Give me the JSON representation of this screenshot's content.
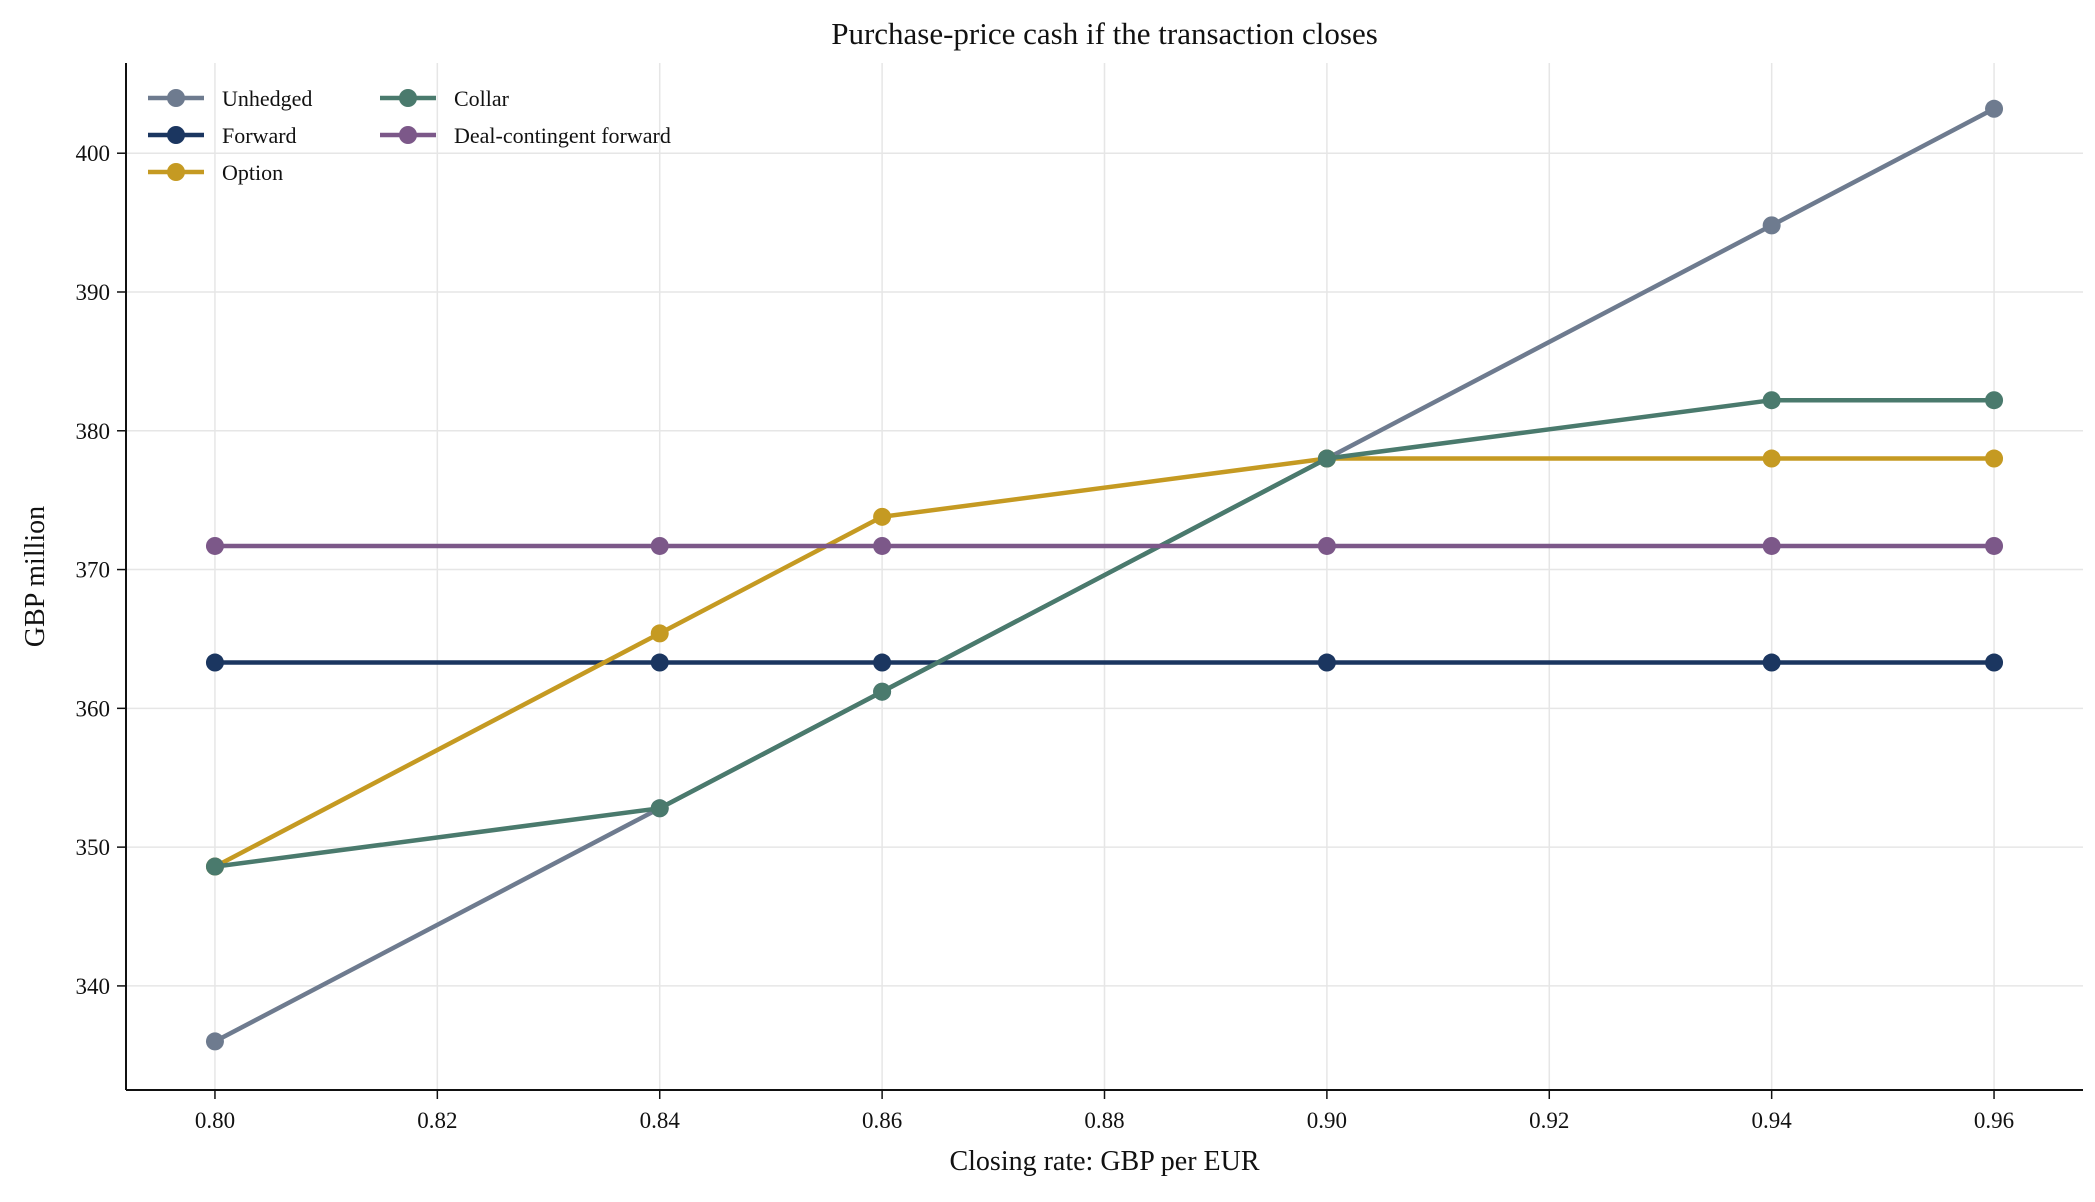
{
  "chart_data": {
    "type": "line",
    "title": "Purchase-price cash if the transaction closes",
    "xlabel": "Closing rate: GBP per EUR",
    "ylabel": "GBP million",
    "x": [
      0.8,
      0.84,
      0.86,
      0.9,
      0.94,
      0.96
    ],
    "xlim": [
      0.792,
      0.968
    ],
    "ylim": [
      332.5,
      406.5
    ],
    "xticks": [
      "0.80",
      "0.82",
      "0.84",
      "0.86",
      "0.88",
      "0.90",
      "0.92",
      "0.94",
      "0.96"
    ],
    "xtick_values": [
      0.8,
      0.82,
      0.84,
      0.86,
      0.88,
      0.9,
      0.92,
      0.94,
      0.96
    ],
    "yticks": [
      "340",
      "350",
      "360",
      "370",
      "380",
      "390",
      "400"
    ],
    "ytick_values": [
      340,
      350,
      360,
      370,
      380,
      390,
      400
    ],
    "grid": true,
    "legend_position": "top-left",
    "series": [
      {
        "name": "Unhedged",
        "color": "#6e7b8f",
        "values": [
          336.0,
          352.8,
          361.2,
          378.0,
          394.8,
          403.2
        ]
      },
      {
        "name": "Forward",
        "color": "#1b3660",
        "values": [
          363.3,
          363.3,
          363.3,
          363.3,
          363.3,
          363.3
        ]
      },
      {
        "name": "Option",
        "color": "#c59a22",
        "values": [
          348.6,
          365.4,
          373.8,
          378.0,
          378.0,
          378.0
        ]
      },
      {
        "name": "Collar",
        "color": "#4a7a6d",
        "values": [
          348.6,
          352.8,
          361.2,
          378.0,
          382.2,
          382.2
        ]
      },
      {
        "name": "Deal-contingent forward",
        "color": "#7c5889",
        "values": [
          371.7,
          371.7,
          371.7,
          371.7,
          371.7,
          371.7
        ]
      }
    ]
  }
}
